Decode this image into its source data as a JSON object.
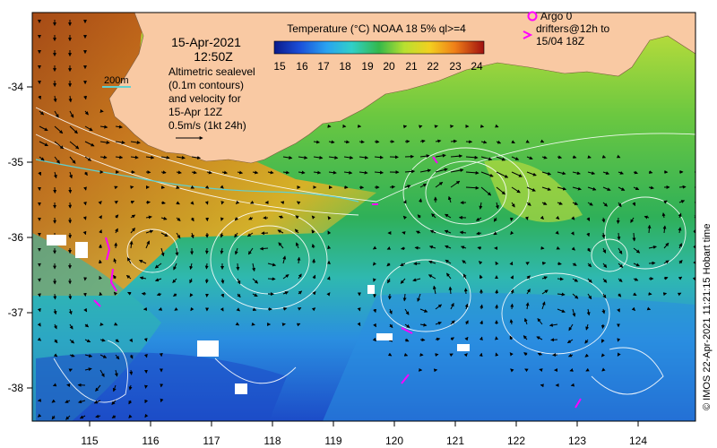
{
  "map": {
    "date": "15-Apr-2021",
    "time": "12:50Z",
    "altimetry_text": [
      "Altimetric sealevel",
      "(0.1m contours)",
      "and velocity for",
      "15-Apr 12Z"
    ],
    "velocity_scale": "0.5m/s (1kt 24h)",
    "isobath_label": "200m",
    "colorbar_title": "Temperature (°C) NOAA 18 5% ql>=4",
    "colorbar_ticks": [
      "15",
      "16",
      "17",
      "18",
      "19",
      "20",
      "21",
      "22",
      "23",
      "24"
    ],
    "colorbar_range": [
      14.5,
      24.5
    ],
    "legend": {
      "argo": "Argo 0",
      "drifters_line1": "drifters@12h to",
      "drifters_line2": "15/04 18Z"
    },
    "lat_labels": [
      "-34",
      "-35",
      "-36",
      "-37",
      "-38"
    ],
    "lon_labels": [
      "115",
      "116",
      "117",
      "118",
      "119",
      "120",
      "121",
      "122",
      "123",
      "124"
    ],
    "lon_range": [
      114.45,
      124.95
    ],
    "lat_range": [
      -38.45,
      -33.05
    ],
    "credit": "© IMOS 22-Apr-2021 11:21:15 Hobart time",
    "colors": {
      "land": "#f9c9a3",
      "vector": "#000000",
      "contour": "#ffffff",
      "isobath": "#5fd0d0",
      "drifter": "#ff00ff"
    }
  }
}
